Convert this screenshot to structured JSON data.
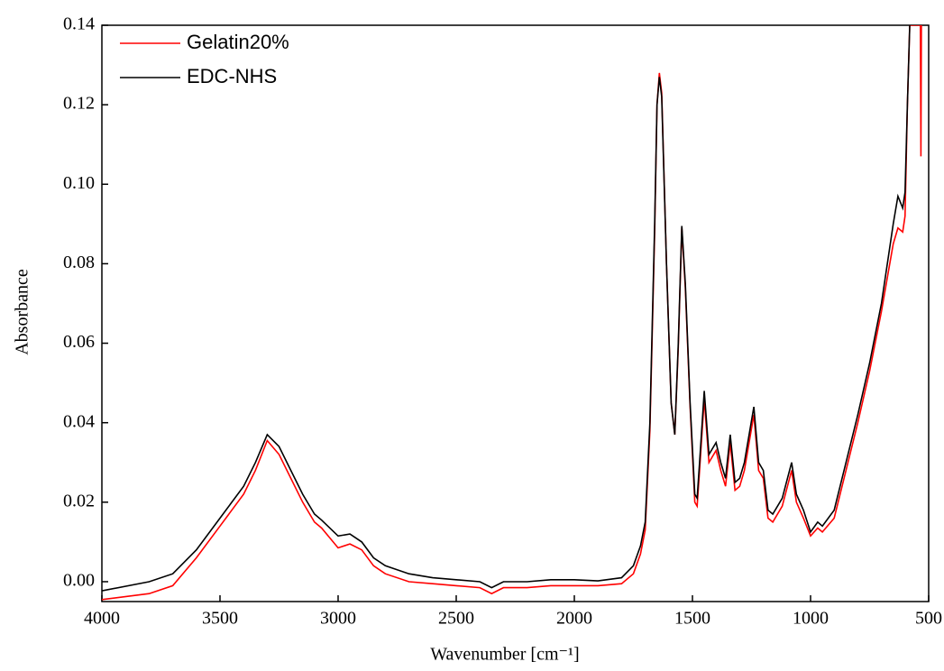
{
  "chart_data": {
    "type": "line",
    "xlabel": "Wavenumber [cm⁻¹]",
    "ylabel": "Absorbance",
    "xlim": [
      4000,
      500
    ],
    "ylim": [
      -0.005,
      0.14
    ],
    "xticks": [
      4000,
      3500,
      3000,
      2500,
      2000,
      1500,
      1000,
      500
    ],
    "yticks": [
      {
        "value": 0,
        "label": "0.00"
      },
      0.02,
      0.04,
      0.06,
      0.08,
      {
        "value": 0.1,
        "label": "0.10"
      },
      0.12,
      0.14
    ],
    "legend": "upper left",
    "x": [
      4000,
      3800,
      3700,
      3600,
      3500,
      3400,
      3350,
      3300,
      3250,
      3200,
      3150,
      3100,
      3070,
      3000,
      2950,
      2900,
      2850,
      2800,
      2700,
      2600,
      2500,
      2400,
      2350,
      2300,
      2200,
      2100,
      2000,
      1900,
      1800,
      1750,
      1720,
      1700,
      1680,
      1660,
      1650,
      1640,
      1630,
      1610,
      1590,
      1575,
      1560,
      1545,
      1530,
      1510,
      1490,
      1480,
      1470,
      1450,
      1430,
      1400,
      1380,
      1360,
      1340,
      1320,
      1300,
      1280,
      1240,
      1220,
      1200,
      1180,
      1160,
      1120,
      1080,
      1060,
      1030,
      1000,
      970,
      950,
      900,
      850,
      800,
      750,
      700,
      650,
      630,
      610,
      600,
      590,
      580,
      535,
      533,
      531
    ],
    "series": [
      {
        "name": "Gelatin20%",
        "color": "#ff0000",
        "values": [
          -0.0045,
          -0.003,
          -0.001,
          0.006,
          0.014,
          0.022,
          0.028,
          0.0355,
          0.032,
          0.026,
          0.02,
          0.015,
          0.0135,
          0.0085,
          0.0095,
          0.008,
          0.004,
          0.002,
          0,
          -0.0005,
          -0.001,
          -0.0015,
          -0.003,
          -0.0015,
          -0.0015,
          -0.001,
          -0.001,
          -0.001,
          -0.0005,
          0.002,
          0.007,
          0.013,
          0.038,
          0.088,
          0.12,
          0.128,
          0.123,
          0.08,
          0.045,
          0.037,
          0.059,
          0.089,
          0.074,
          0.044,
          0.02,
          0.019,
          0.028,
          0.046,
          0.03,
          0.033,
          0.028,
          0.024,
          0.035,
          0.023,
          0.024,
          0.028,
          0.042,
          0.028,
          0.026,
          0.016,
          0.015,
          0.019,
          0.028,
          0.02,
          0.016,
          0.0115,
          0.0135,
          0.0125,
          0.016,
          0.028,
          0.04,
          0.053,
          0.068,
          0.085,
          0.089,
          0.088,
          0.092,
          0.12,
          0.14,
          0.14,
          0.107,
          0.14
        ]
      },
      {
        "name": "EDC-NHS",
        "color": "#000000",
        "values": [
          -0.0023,
          0,
          0.002,
          0.008,
          0.016,
          0.024,
          0.03,
          0.037,
          0.034,
          0.028,
          0.022,
          0.017,
          0.0155,
          0.0115,
          0.012,
          0.01,
          0.006,
          0.004,
          0.002,
          0.001,
          0.0005,
          0,
          -0.0015,
          0,
          0,
          0.0005,
          0.0005,
          0.0002,
          0.001,
          0.004,
          0.009,
          0.015,
          0.04,
          0.09,
          0.12,
          0.127,
          0.122,
          0.08,
          0.045,
          0.037,
          0.06,
          0.0895,
          0.075,
          0.045,
          0.022,
          0.021,
          0.03,
          0.048,
          0.032,
          0.035,
          0.03,
          0.026,
          0.037,
          0.025,
          0.026,
          0.03,
          0.044,
          0.03,
          0.028,
          0.018,
          0.017,
          0.021,
          0.03,
          0.022,
          0.018,
          0.0125,
          0.015,
          0.014,
          0.018,
          0.03,
          0.042,
          0.055,
          0.07,
          0.09,
          0.097,
          0.094,
          0.098,
          0.12,
          0.14,
          null,
          null,
          null
        ]
      }
    ]
  }
}
